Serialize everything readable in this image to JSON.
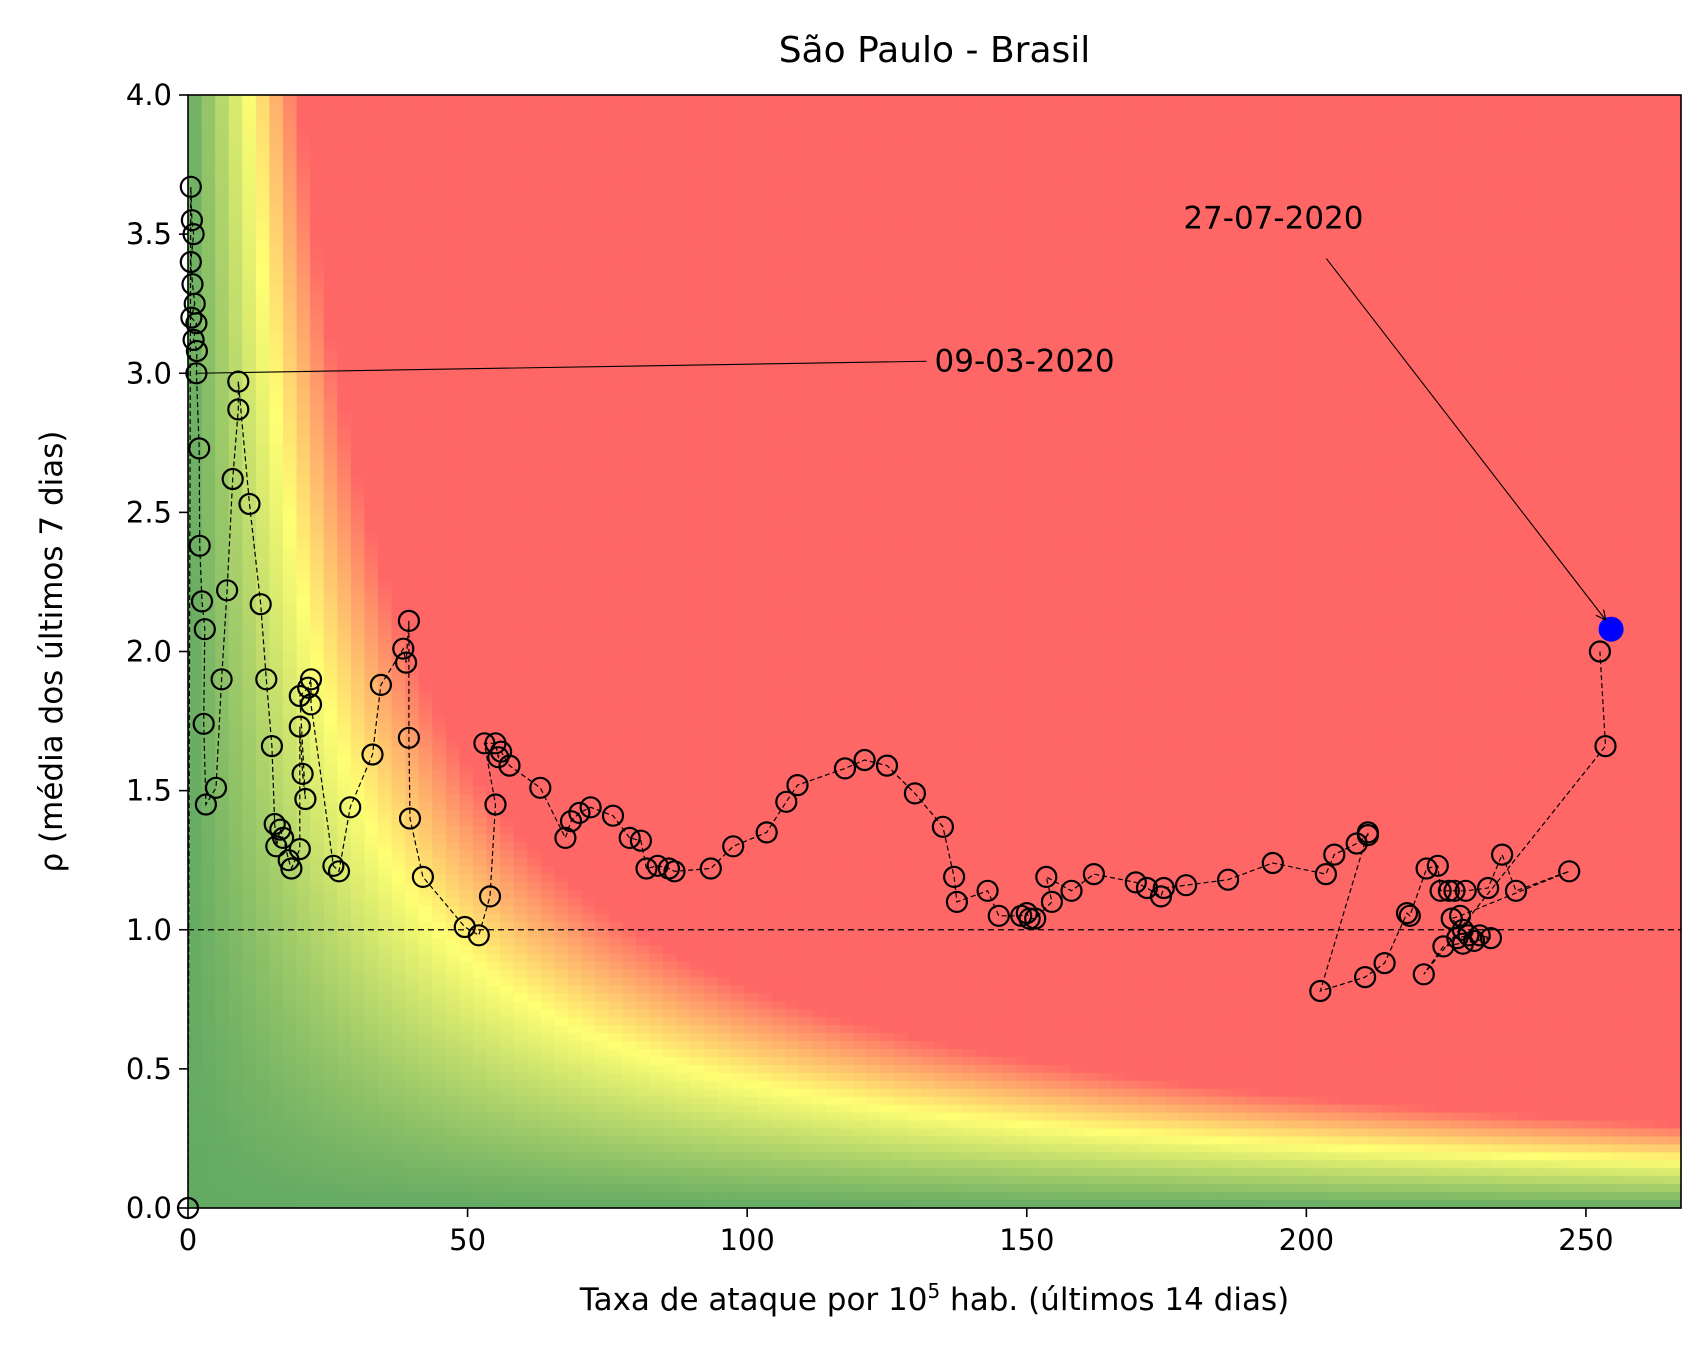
{
  "chart_data": {
    "type": "scatter",
    "title": "São Paulo - Brasil",
    "xlabel": {
      "prefix": "Taxa de ataque por 10",
      "superscript": "5",
      "suffix": " hab. (últimos 14 dias)"
    },
    "ylabel": "ρ (média dos últimos 7 dias)",
    "xlim": [
      0,
      267
    ],
    "ylim": [
      0.0,
      4.0
    ],
    "x_ticks": [
      0,
      50,
      100,
      150,
      200,
      250
    ],
    "x_tick_labels": [
      "0",
      "50",
      "100",
      "150",
      "200",
      "250"
    ],
    "y_ticks": [
      0.0,
      0.5,
      1.0,
      1.5,
      2.0,
      2.5,
      3.0,
      3.5,
      4.0
    ],
    "y_tick_labels": [
      "0.0",
      "0.5",
      "1.0",
      "1.5",
      "2.0",
      "2.5",
      "3.0",
      "3.5",
      "4.0"
    ],
    "grid": false,
    "reference_line_y": 1.0,
    "background": {
      "type": "risk-gradient",
      "colors": {
        "green": "#63aa63",
        "yellow": "#ffff73",
        "red": "#ff6666"
      }
    },
    "series": [
      {
        "marker": "open-circle",
        "line": "dashed",
        "color": "#000000",
        "points": [
          [
            0.0,
            0.0
          ],
          [
            0.5,
            3.67
          ],
          [
            0.7,
            3.55
          ],
          [
            1.0,
            3.5
          ],
          [
            0.5,
            3.4
          ],
          [
            0.8,
            3.32
          ],
          [
            1.2,
            3.25
          ],
          [
            0.6,
            3.2
          ],
          [
            1.5,
            3.18
          ],
          [
            1.0,
            3.12
          ],
          [
            1.6,
            3.08
          ],
          [
            1.5,
            3.0
          ],
          [
            2.0,
            2.73
          ],
          [
            2.1,
            2.38
          ],
          [
            2.5,
            2.18
          ],
          [
            3.0,
            2.08
          ],
          [
            2.8,
            1.74
          ],
          [
            3.2,
            1.45
          ],
          [
            5.0,
            1.51
          ],
          [
            6.0,
            1.9
          ],
          [
            7.0,
            2.22
          ],
          [
            8.0,
            2.62
          ],
          [
            9.0,
            2.87
          ],
          [
            9.0,
            2.97
          ],
          [
            11.0,
            2.53
          ],
          [
            13.0,
            2.17
          ],
          [
            14.0,
            1.9
          ],
          [
            15.0,
            1.66
          ],
          [
            15.5,
            1.38
          ],
          [
            15.8,
            1.3
          ],
          [
            16.5,
            1.36
          ],
          [
            17.0,
            1.33
          ],
          [
            18.0,
            1.25
          ],
          [
            18.5,
            1.22
          ],
          [
            20.0,
            1.29
          ],
          [
            20.0,
            1.73
          ],
          [
            20.5,
            1.56
          ],
          [
            21.0,
            1.47
          ],
          [
            20.0,
            1.84
          ],
          [
            21.5,
            1.87
          ],
          [
            22.0,
            1.9
          ],
          [
            22.0,
            1.81
          ],
          [
            26.0,
            1.23
          ],
          [
            27.0,
            1.21
          ],
          [
            29.0,
            1.44
          ],
          [
            33.0,
            1.63
          ],
          [
            34.5,
            1.88
          ],
          [
            38.5,
            2.01
          ],
          [
            39.0,
            1.96
          ],
          [
            39.5,
            2.11
          ],
          [
            39.5,
            1.69
          ],
          [
            39.7,
            1.4
          ],
          [
            42.0,
            1.19
          ],
          [
            49.5,
            1.01
          ],
          [
            52.0,
            0.98
          ],
          [
            54.0,
            1.12
          ],
          [
            55.0,
            1.45
          ],
          [
            53.0,
            1.67
          ],
          [
            55.0,
            1.67
          ],
          [
            55.5,
            1.62
          ],
          [
            56.0,
            1.64
          ],
          [
            57.5,
            1.59
          ],
          [
            63.0,
            1.51
          ],
          [
            67.5,
            1.33
          ],
          [
            68.5,
            1.39
          ],
          [
            70.0,
            1.42
          ],
          [
            72.0,
            1.44
          ],
          [
            76.0,
            1.41
          ],
          [
            79.0,
            1.33
          ],
          [
            81.0,
            1.32
          ],
          [
            82.0,
            1.22
          ],
          [
            84.0,
            1.23
          ],
          [
            86.0,
            1.22
          ],
          [
            87.0,
            1.21
          ],
          [
            93.5,
            1.22
          ],
          [
            97.5,
            1.3
          ],
          [
            103.5,
            1.35
          ],
          [
            107.0,
            1.46
          ],
          [
            109.0,
            1.52
          ],
          [
            117.5,
            1.58
          ],
          [
            121.0,
            1.61
          ],
          [
            125.0,
            1.59
          ],
          [
            130.0,
            1.49
          ],
          [
            135.0,
            1.37
          ],
          [
            137.0,
            1.19
          ],
          [
            137.5,
            1.1
          ],
          [
            143.0,
            1.14
          ],
          [
            145.0,
            1.05
          ],
          [
            149.0,
            1.05
          ],
          [
            150.0,
            1.06
          ],
          [
            150.5,
            1.04
          ],
          [
            151.5,
            1.04
          ],
          [
            154.5,
            1.1
          ],
          [
            153.5,
            1.19
          ],
          [
            158.0,
            1.14
          ],
          [
            162.0,
            1.2
          ],
          [
            169.5,
            1.17
          ],
          [
            171.5,
            1.15
          ],
          [
            174.0,
            1.12
          ],
          [
            174.5,
            1.15
          ],
          [
            178.5,
            1.16
          ],
          [
            186.0,
            1.18
          ],
          [
            194.0,
            1.24
          ],
          [
            203.5,
            1.2
          ],
          [
            205.0,
            1.27
          ],
          [
            209.0,
            1.31
          ],
          [
            211.0,
            1.34
          ],
          [
            211.0,
            1.35
          ],
          [
            202.5,
            0.78
          ],
          [
            210.5,
            0.83
          ],
          [
            214.0,
            0.88
          ],
          [
            218.0,
            1.06
          ],
          [
            218.5,
            1.05
          ],
          [
            221.5,
            1.22
          ],
          [
            223.5,
            1.23
          ],
          [
            224.0,
            1.14
          ],
          [
            225.5,
            1.14
          ],
          [
            226.5,
            1.14
          ],
          [
            228.5,
            1.14
          ],
          [
            232.5,
            1.15
          ],
          [
            235.0,
            1.27
          ],
          [
            237.5,
            1.14
          ],
          [
            247.0,
            1.21
          ],
          [
            227.5,
            1.05
          ],
          [
            226.0,
            1.04
          ],
          [
            228.0,
            1.0
          ],
          [
            229.0,
            0.98
          ],
          [
            227.0,
            0.97
          ],
          [
            228.0,
            0.95
          ],
          [
            230.0,
            0.96
          ],
          [
            231.0,
            0.98
          ],
          [
            233.0,
            0.97
          ],
          [
            224.5,
            0.94
          ],
          [
            221.0,
            0.84
          ],
          [
            253.5,
            1.66
          ],
          [
            252.5,
            2.0
          ]
        ]
      },
      {
        "marker": "filled-circle",
        "color": "#0000ff",
        "points": [
          [
            254.5,
            2.08
          ]
        ]
      }
    ],
    "annotations": [
      {
        "text": "09-03-2020",
        "target": [
          1.5,
          3.0
        ],
        "text_anchor_data": [
          133.5,
          3.0
        ]
      },
      {
        "text": "27-07-2020",
        "target": [
          254.5,
          2.08
        ],
        "text_anchor_data": [
          178,
          3.52
        ]
      }
    ]
  }
}
